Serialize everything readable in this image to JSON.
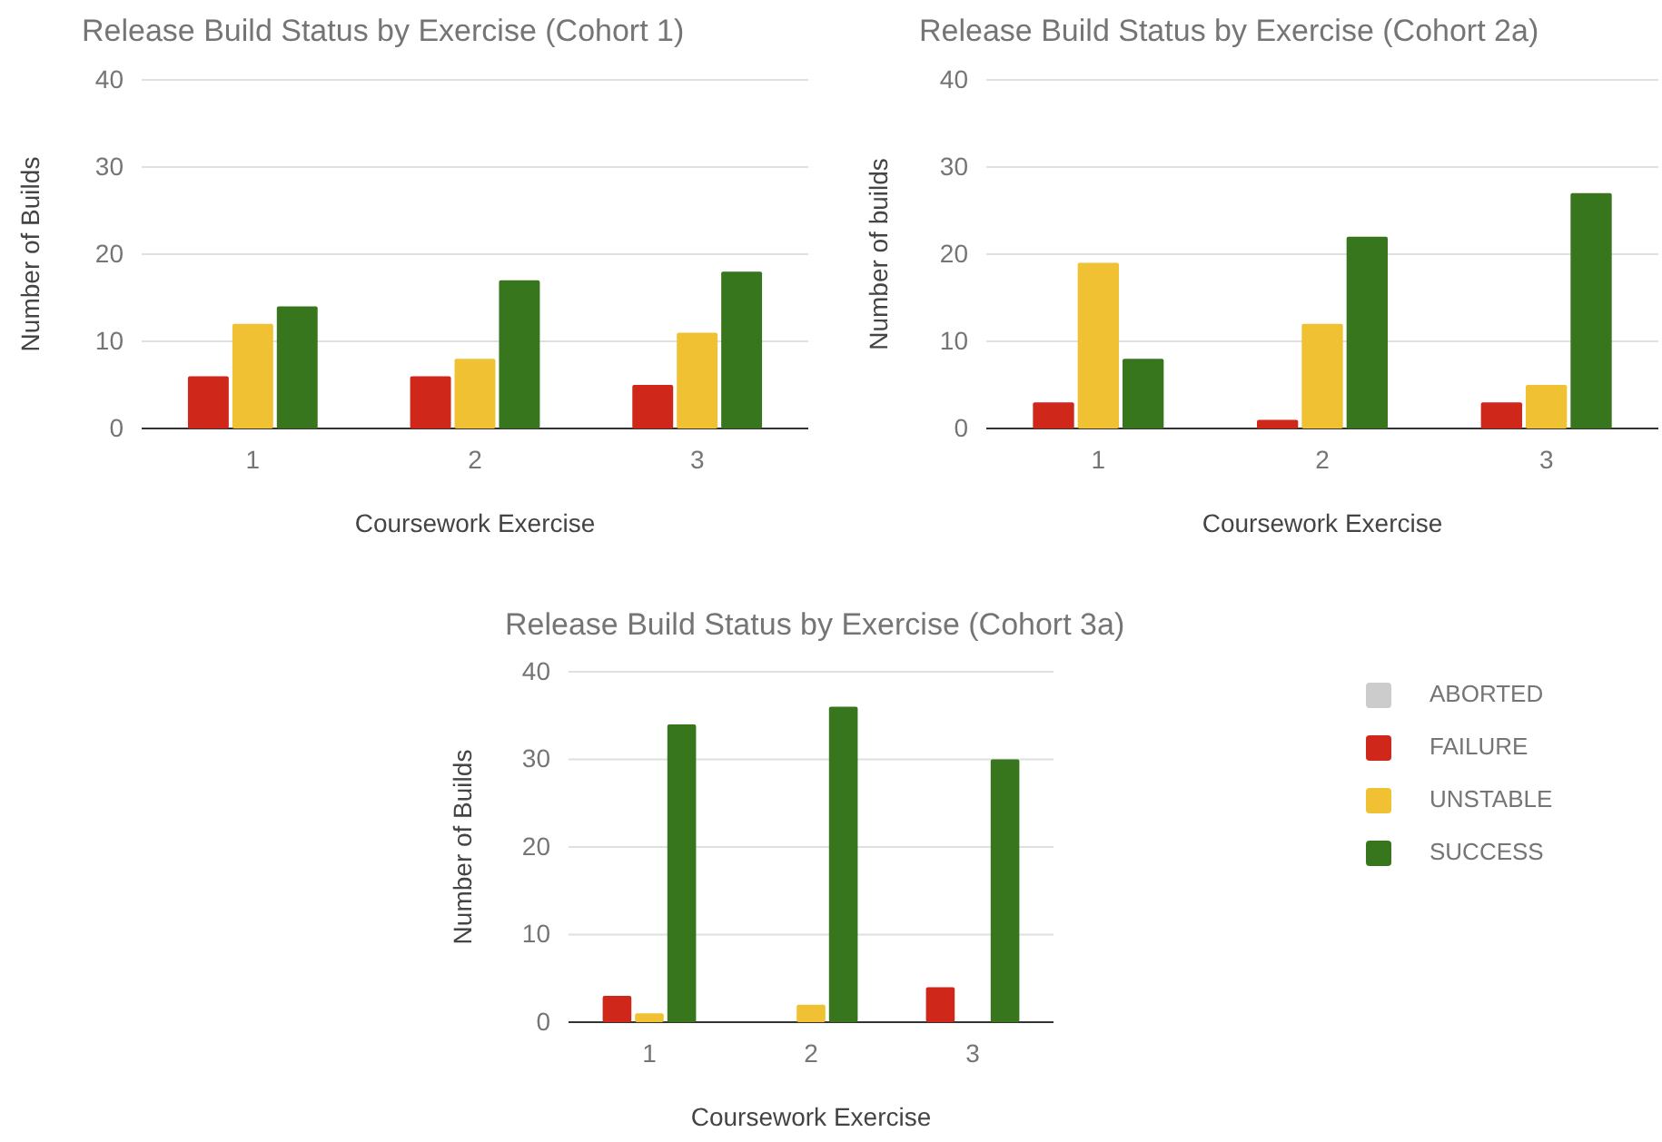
{
  "chart_data": [
    {
      "type": "bar",
      "title": "Release Build Status by Exercise (Cohort 1)",
      "xlabel": "Coursework Exercise",
      "ylabel": "Number of Builds",
      "categories": [
        "1",
        "2",
        "3"
      ],
      "ylim": [
        0,
        40
      ],
      "yticks": [
        0,
        10,
        20,
        30,
        40
      ],
      "grid": "y",
      "legend": false,
      "series": [
        {
          "color": "#d0271b",
          "values": [
            6,
            6,
            5
          ]
        },
        {
          "color": "#f0c233",
          "values": [
            12,
            8,
            11
          ]
        },
        {
          "color": "#38761d",
          "values": [
            14,
            17,
            18
          ]
        }
      ]
    },
    {
      "type": "bar",
      "title": "Release Build Status by Exercise (Cohort 2a)",
      "xlabel": "Coursework Exercise",
      "ylabel": "Number of builds",
      "categories": [
        "1",
        "2",
        "3"
      ],
      "ylim": [
        0,
        40
      ],
      "yticks": [
        0,
        10,
        20,
        30,
        40
      ],
      "grid": "y",
      "legend": false,
      "series": [
        {
          "color": "#d0271b",
          "values": [
            3,
            1,
            3
          ]
        },
        {
          "color": "#f0c233",
          "values": [
            19,
            12,
            5
          ]
        },
        {
          "color": "#38761d",
          "values": [
            8,
            22,
            27
          ]
        }
      ]
    },
    {
      "type": "bar",
      "title": "Release Build Status by Exercise (Cohort 3a)",
      "xlabel": "Coursework Exercise",
      "ylabel": "Number of Builds",
      "categories": [
        "1",
        "2",
        "3"
      ],
      "ylim": [
        0,
        40
      ],
      "yticks": [
        0,
        10,
        20,
        30,
        40
      ],
      "grid": "y",
      "legend": "right",
      "series": [
        {
          "name": "ABORTED",
          "color": "#cccccc",
          "values": [
            null,
            null,
            null
          ]
        },
        {
          "name": "FAILURE",
          "color": "#d0271b",
          "values": [
            3,
            0,
            4
          ]
        },
        {
          "name": "UNSTABLE",
          "color": "#f0c233",
          "values": [
            1,
            2,
            0
          ]
        },
        {
          "name": "SUCCESS",
          "color": "#38761d",
          "values": [
            34,
            36,
            30
          ]
        }
      ]
    }
  ]
}
